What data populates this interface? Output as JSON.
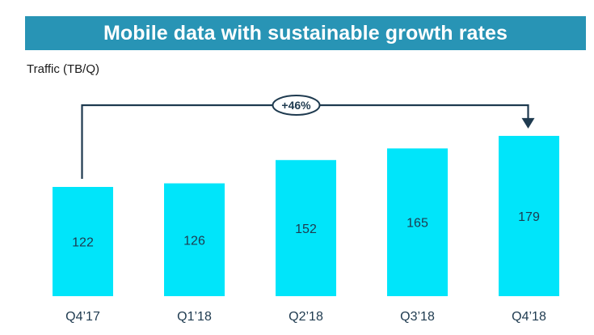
{
  "header": {
    "title": "Mobile data with sustainable growth rates"
  },
  "chart_data": {
    "type": "bar",
    "title": "Mobile data with sustainable growth rates",
    "ylabel": "Traffic (TB/Q)",
    "xlabel": "",
    "categories": [
      "Q4’17",
      "Q1’18",
      "Q2’18",
      "Q3’18",
      "Q4’18"
    ],
    "values": [
      122,
      126,
      152,
      165,
      179
    ],
    "ylim": [
      0,
      200
    ],
    "grid": false,
    "legend": "none",
    "bar_color": "#00e5fa",
    "annotation": {
      "text": "+46%",
      "from_category": "Q4’17",
      "to_category": "Q4’18",
      "color": "#1e3a4f"
    }
  }
}
